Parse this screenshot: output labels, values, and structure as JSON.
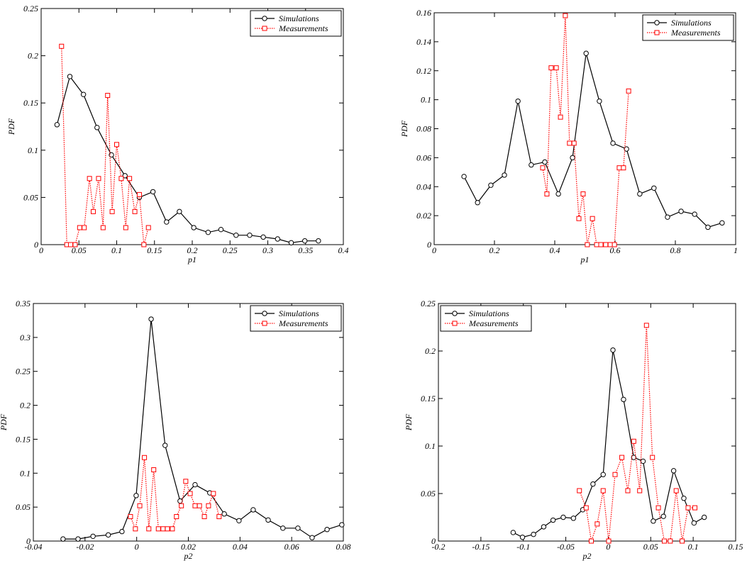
{
  "chart_data": [
    {
      "type": "line",
      "xlabel": "p1",
      "ylabel": "PDF",
      "xlim": [
        0,
        0.4
      ],
      "ylim": [
        0,
        0.25
      ],
      "xticks": [
        0,
        0.05,
        0.1,
        0.15,
        0.2,
        0.25,
        0.3,
        0.35,
        0.4
      ],
      "yticks": [
        0,
        0.05,
        0.1,
        0.15,
        0.2,
        0.25
      ],
      "legend": "upper right",
      "series": [
        {
          "name": "Simulations",
          "color": "#000000",
          "marker": "circle",
          "linestyle": "solid",
          "x": [
            0.021,
            0.038,
            0.056,
            0.074,
            0.093,
            0.111,
            0.13,
            0.148,
            0.166,
            0.183,
            0.202,
            0.221,
            0.238,
            0.258,
            0.276,
            0.294,
            0.313,
            0.331,
            0.349,
            0.367
          ],
          "values": [
            0.127,
            0.178,
            0.159,
            0.124,
            0.095,
            0.073,
            0.05,
            0.056,
            0.024,
            0.035,
            0.018,
            0.013,
            0.016,
            0.01,
            0.01,
            0.008,
            0.006,
            0.002,
            0.004,
            0.004
          ]
        },
        {
          "name": "Measurements",
          "color": "#ff0000",
          "marker": "square",
          "linestyle": "dotted",
          "x": [
            0.027,
            0.034,
            0.039,
            0.045,
            0.051,
            0.057,
            0.064,
            0.069,
            0.076,
            0.082,
            0.088,
            0.094,
            0.1,
            0.106,
            0.112,
            0.117,
            0.124,
            0.13,
            0.136,
            0.142
          ],
          "values": [
            0.21,
            0,
            0,
            0,
            0.018,
            0.018,
            0.07,
            0.035,
            0.07,
            0.018,
            0.158,
            0.035,
            0.106,
            0.07,
            0.018,
            0.07,
            0.035,
            0.053,
            0,
            0.018
          ]
        }
      ]
    },
    {
      "type": "line",
      "xlabel": "p1",
      "ylabel": "PDF",
      "xlim": [
        0,
        1
      ],
      "ylim": [
        0,
        0.16
      ],
      "xticks": [
        0,
        0.2,
        0.4,
        0.6,
        0.8,
        1
      ],
      "yticks": [
        0,
        0.02,
        0.04,
        0.06,
        0.08,
        0.1,
        0.12,
        0.14,
        0.16
      ],
      "legend": "upper right",
      "series": [
        {
          "name": "Simulations",
          "color": "#000000",
          "marker": "circle",
          "linestyle": "solid",
          "x": [
            0.099,
            0.144,
            0.188,
            0.233,
            0.278,
            0.322,
            0.367,
            0.412,
            0.459,
            0.504,
            0.548,
            0.593,
            0.638,
            0.682,
            0.729,
            0.774,
            0.819,
            0.864,
            0.908,
            0.955
          ],
          "values": [
            0.047,
            0.029,
            0.041,
            0.048,
            0.099,
            0.055,
            0.057,
            0.035,
            0.06,
            0.132,
            0.099,
            0.07,
            0.066,
            0.035,
            0.039,
            0.019,
            0.023,
            0.021,
            0.012,
            0.015
          ]
        },
        {
          "name": "Measurements",
          "color": "#ff0000",
          "marker": "square",
          "linestyle": "dotted",
          "x": [
            0.36,
            0.374,
            0.388,
            0.405,
            0.419,
            0.435,
            0.449,
            0.464,
            0.48,
            0.494,
            0.508,
            0.525,
            0.539,
            0.553,
            0.569,
            0.584,
            0.598,
            0.614,
            0.628,
            0.645
          ],
          "values": [
            0.053,
            0.035,
            0.122,
            0.122,
            0.088,
            0.158,
            0.07,
            0.07,
            0.018,
            0.035,
            0,
            0.018,
            0,
            0,
            0,
            0,
            0,
            0.053,
            0.053,
            0.106
          ]
        }
      ]
    },
    {
      "type": "line",
      "xlabel": "p2",
      "ylabel": "PDF",
      "xlim": [
        -0.04,
        0.08
      ],
      "ylim": [
        0,
        0.35
      ],
      "xticks": [
        -0.04,
        -0.02,
        0,
        0.02,
        0.04,
        0.06,
        0.08
      ],
      "yticks": [
        0,
        0.05,
        0.1,
        0.15,
        0.2,
        0.25,
        0.3,
        0.35
      ],
      "legend": "upper right",
      "series": [
        {
          "name": "Simulations",
          "color": "#000000",
          "marker": "circle",
          "linestyle": "solid",
          "x": [
            -0.0285,
            -0.0227,
            -0.0169,
            -0.011,
            -0.0057,
            -0.0002,
            0.0056,
            0.011,
            0.0168,
            0.0226,
            0.0283,
            0.0339,
            0.0396,
            0.0451,
            0.0509,
            0.0566,
            0.0624,
            0.0679,
            0.0737,
            0.0794
          ],
          "values": [
            0.003,
            0.003,
            0.007,
            0.009,
            0.014,
            0.067,
            0.327,
            0.141,
            0.059,
            0.083,
            0.071,
            0.04,
            0.03,
            0.046,
            0.031,
            0.019,
            0.019,
            0.005,
            0.017,
            0.024
          ]
        },
        {
          "name": "Measurements",
          "color": "#ff0000",
          "marker": "square",
          "linestyle": "dotted",
          "x": [
            -0.0024,
            -0.0005,
            0.0012,
            0.003,
            0.0047,
            0.0066,
            0.0084,
            0.0102,
            0.0119,
            0.0138,
            0.0154,
            0.0173,
            0.019,
            0.0207,
            0.0226,
            0.0243,
            0.0262,
            0.0278,
            0.0297,
            0.0319
          ],
          "values": [
            0.036,
            0.018,
            0.052,
            0.123,
            0.018,
            0.105,
            0.018,
            0.018,
            0.018,
            0.018,
            0.036,
            0.052,
            0.088,
            0.07,
            0.052,
            0.052,
            0.036,
            0.052,
            0.07,
            0.036
          ]
        }
      ]
    },
    {
      "type": "line",
      "xlabel": "p2",
      "ylabel": "PDF",
      "xlim": [
        -0.2,
        0.15
      ],
      "ylim": [
        0,
        0.25
      ],
      "xticks": [
        -0.2,
        -0.15,
        -0.1,
        -0.05,
        0,
        0.05,
        0.1,
        0.15
      ],
      "yticks": [
        0,
        0.05,
        0.1,
        0.15,
        0.2,
        0.25
      ],
      "legend": "upper left",
      "series": [
        {
          "name": "Simulations",
          "color": "#000000",
          "marker": "circle",
          "linestyle": "solid",
          "x": [
            -0.112,
            -0.101,
            -0.088,
            -0.076,
            -0.065,
            -0.053,
            -0.041,
            -0.03,
            -0.018,
            -0.006,
            0.0055,
            0.018,
            0.03,
            0.041,
            0.053,
            0.065,
            0.077,
            0.089,
            0.101,
            0.113
          ],
          "values": [
            0.009,
            0.004,
            0.007,
            0.015,
            0.022,
            0.025,
            0.024,
            0.033,
            0.06,
            0.07,
            0.201,
            0.149,
            0.088,
            0.084,
            0.021,
            0.026,
            0.074,
            0.045,
            0.019,
            0.025
          ]
        },
        {
          "name": "Measurements",
          "color": "#ff0000",
          "marker": "square",
          "linestyle": "dotted",
          "x": [
            -0.034,
            -0.026,
            -0.02,
            -0.013,
            -0.006,
            0.0005,
            0.008,
            0.016,
            0.023,
            0.03,
            0.037,
            0.045,
            0.052,
            0.059,
            0.066,
            0.073,
            0.08,
            0.087,
            0.094,
            0.102
          ],
          "values": [
            0.053,
            0.035,
            0,
            0.018,
            0.053,
            0,
            0.07,
            0.088,
            0.053,
            0.105,
            0.053,
            0.227,
            0.088,
            0.035,
            0,
            0,
            0.053,
            0,
            0.035,
            0.035
          ]
        }
      ]
    }
  ]
}
